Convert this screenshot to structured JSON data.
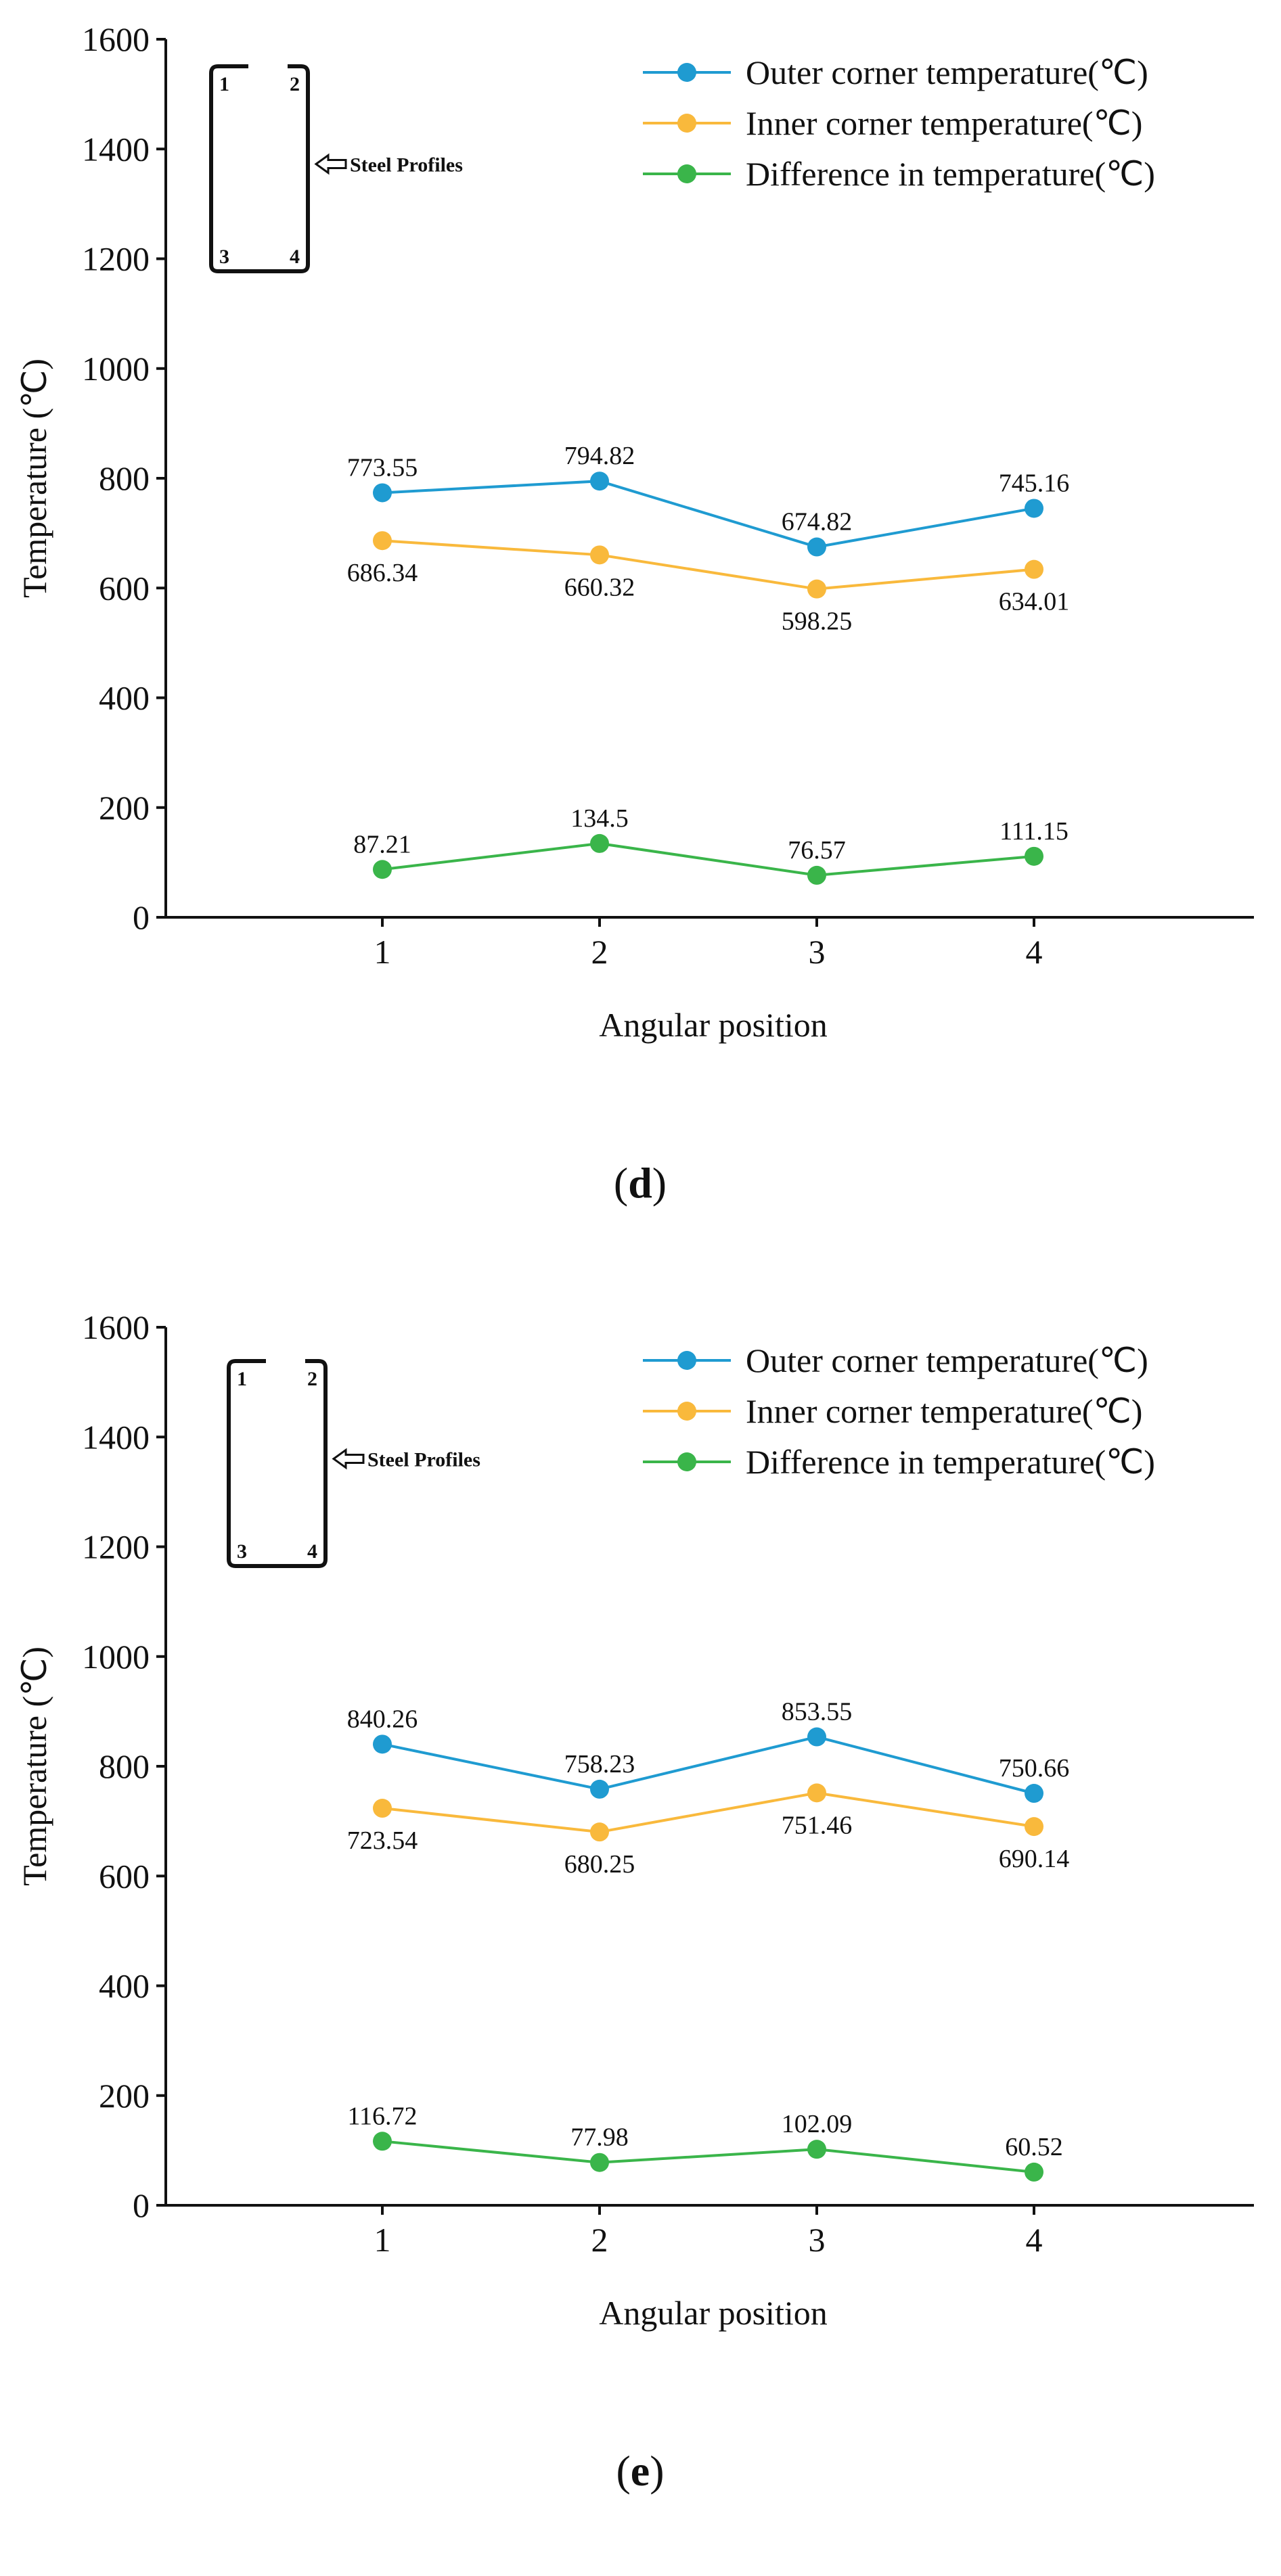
{
  "chart_data": [
    {
      "type": "line",
      "panel_label": "d",
      "caption_open": "(",
      "caption_close": ")",
      "xlabel": "Angular position",
      "ylabel": "Temperature (℃)",
      "categories": [
        "1",
        "2",
        "3",
        "4"
      ],
      "ylim": [
        0,
        1600
      ],
      "yticks": [
        0,
        200,
        400,
        600,
        800,
        1000,
        1200,
        1400,
        1600
      ],
      "legend_position": "top-right",
      "inset": {
        "label": "Steel Profiles",
        "corners": [
          "1",
          "2",
          "3",
          "4"
        ]
      },
      "series": [
        {
          "name": "Outer corner temperature(℃)",
          "color": "#1f9bd1",
          "values": [
            773.55,
            794.82,
            674.82,
            745.16
          ],
          "labels": [
            "773.55",
            "794.82",
            "674.82",
            "745.16"
          ],
          "label_pos": [
            "above",
            "above",
            "above",
            "above"
          ]
        },
        {
          "name": "Inner corner temperature(℃)",
          "color": "#f9b93c",
          "values": [
            686.34,
            660.32,
            598.25,
            634.01
          ],
          "labels": [
            "686.34",
            "660.32",
            "598.25",
            "634.01"
          ],
          "label_pos": [
            "below",
            "below",
            "below",
            "below"
          ]
        },
        {
          "name": "Difference in temperature(℃)",
          "color": "#3ab54a",
          "values": [
            87.21,
            134.5,
            76.57,
            111.15
          ],
          "labels": [
            "87.21",
            "134.5",
            "76.57",
            "111.15"
          ],
          "label_pos": [
            "above",
            "above",
            "above",
            "above"
          ]
        }
      ]
    },
    {
      "type": "line",
      "panel_label": "e",
      "caption_open": "(",
      "caption_close": ")",
      "xlabel": "Angular position",
      "ylabel": "Temperature (℃)",
      "categories": [
        "1",
        "2",
        "3",
        "4"
      ],
      "ylim": [
        0,
        1600
      ],
      "yticks": [
        0,
        200,
        400,
        600,
        800,
        1000,
        1200,
        1400,
        1600
      ],
      "legend_position": "top-right",
      "inset": {
        "label": "Steel Profiles",
        "corners": [
          "1",
          "2",
          "3",
          "4"
        ]
      },
      "series": [
        {
          "name": "Outer corner temperature(℃)",
          "color": "#1f9bd1",
          "values": [
            840.26,
            758.23,
            853.55,
            750.66
          ],
          "labels": [
            "840.26",
            "758.23",
            "853.55",
            "750.66"
          ],
          "label_pos": [
            "above",
            "above",
            "above",
            "above"
          ]
        },
        {
          "name": "Inner corner temperature(℃)",
          "color": "#f9b93c",
          "values": [
            723.54,
            680.25,
            751.46,
            690.14
          ],
          "labels": [
            "723.54",
            "680.25",
            "751.46",
            "690.14"
          ],
          "label_pos": [
            "below",
            "below",
            "below",
            "below"
          ]
        },
        {
          "name": "Difference in temperature(℃)",
          "color": "#3ab54a",
          "values": [
            116.72,
            77.98,
            102.09,
            60.52
          ],
          "labels": [
            "116.72",
            "77.98",
            "102.09",
            "60.52"
          ],
          "label_pos": [
            "above",
            "above",
            "above",
            "above"
          ]
        }
      ]
    }
  ]
}
